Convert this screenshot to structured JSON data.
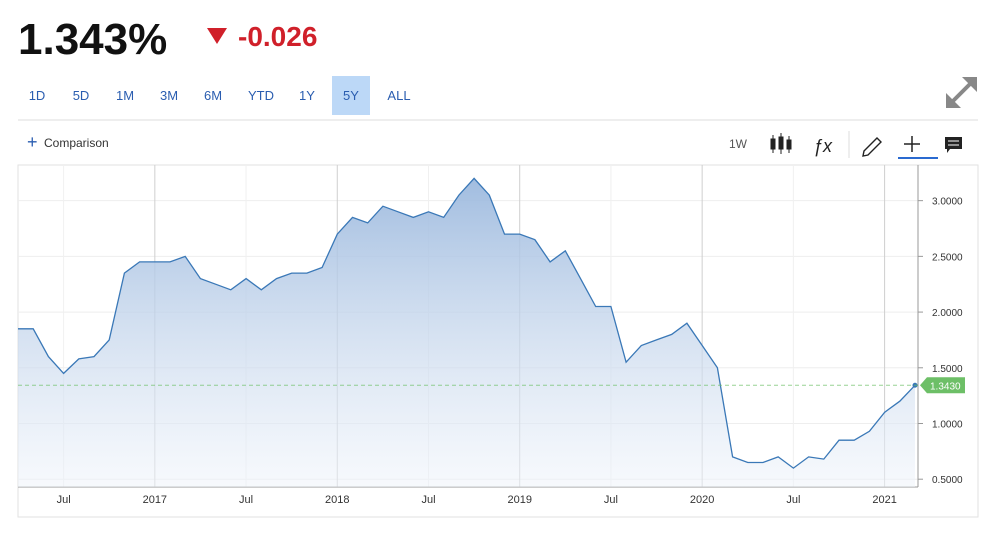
{
  "header": {
    "price": "1.343%",
    "change": "-0.026"
  },
  "toolbar": {
    "ranges": [
      "1D",
      "5D",
      "1M",
      "3M",
      "6M",
      "YTD",
      "1Y",
      "5Y",
      "ALL"
    ],
    "selected": "5Y",
    "comparison": "Comparison",
    "interval": "1W"
  },
  "chart_data": {
    "type": "area",
    "categories": [
      null,
      null,
      null,
      "Jul",
      null,
      null,
      null,
      null,
      null,
      "2017",
      null,
      null,
      null,
      null,
      null,
      "Jul",
      null,
      null,
      null,
      null,
      null,
      "2018",
      null,
      null,
      null,
      null,
      null,
      "Jul",
      null,
      null,
      null,
      null,
      null,
      "2019",
      null,
      null,
      null,
      null,
      null,
      "Jul",
      null,
      null,
      null,
      null,
      null,
      "2020",
      null,
      null,
      null,
      null,
      null,
      "Jul",
      null,
      null,
      null,
      null,
      null,
      "2021",
      null,
      null
    ],
    "series": [
      {
        "color": "#3a78b7",
        "values": [
          1.85,
          1.85,
          1.6,
          1.45,
          1.58,
          1.6,
          1.75,
          2.35,
          2.45,
          2.45,
          2.45,
          2.5,
          2.3,
          2.25,
          2.2,
          2.3,
          2.2,
          2.3,
          2.35,
          2.35,
          2.4,
          2.7,
          2.85,
          2.8,
          2.95,
          2.9,
          2.85,
          2.9,
          2.85,
          3.05,
          3.2,
          3.05,
          2.7,
          2.7,
          2.65,
          2.45,
          2.55,
          2.3,
          2.05,
          2.05,
          1.55,
          1.7,
          1.75,
          1.8,
          1.9,
          1.7,
          1.5,
          0.7,
          0.65,
          0.65,
          0.7,
          0.6,
          0.7,
          0.68,
          0.85,
          0.85,
          0.93,
          1.1,
          1.2,
          1.343
        ]
      }
    ],
    "ylim": [
      0.43,
      3.32
    ],
    "yticks": [
      {
        "value": 0.5,
        "label": "0.5000"
      },
      {
        "value": 1,
        "label": "1.0000"
      },
      {
        "value": 1.5,
        "label": "1.5000"
      },
      {
        "value": 2,
        "label": "2.0000"
      },
      {
        "value": 2.5,
        "label": "2.5000"
      },
      {
        "value": 3,
        "label": "3.0000"
      }
    ],
    "last_marker": {
      "value": 1.343,
      "label": "1.3430"
    },
    "last_color": "#6dbf67",
    "grid": true
  }
}
